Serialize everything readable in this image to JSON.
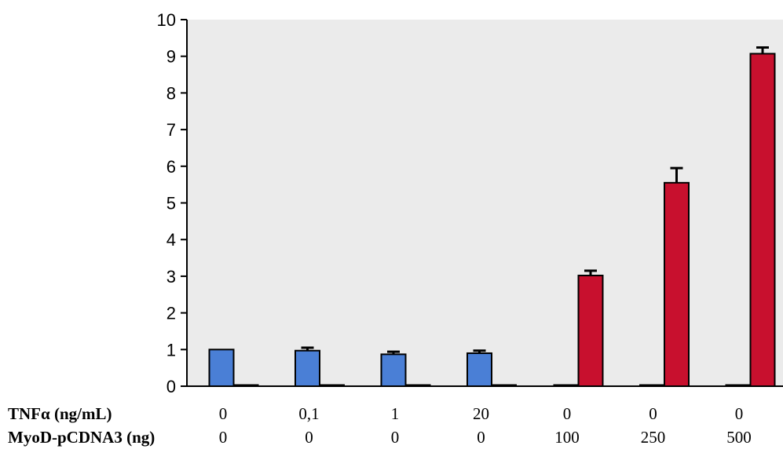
{
  "chart_data": {
    "type": "bar",
    "title": "",
    "xlabel": "",
    "ylabel": "",
    "ylim": [
      0,
      10
    ],
    "yticks": [
      0,
      1,
      2,
      3,
      4,
      5,
      6,
      7,
      8,
      9,
      10
    ],
    "grid": false,
    "legend": "none",
    "row_labels": [
      "TNFα (ng/mL)",
      "MyoD-pCDNA3 (ng)"
    ],
    "categories": [
      {
        "tnf": "0",
        "myod": "0"
      },
      {
        "tnf": "0,1",
        "myod": "0"
      },
      {
        "tnf": "1",
        "myod": "0"
      },
      {
        "tnf": "20",
        "myod": "0"
      },
      {
        "tnf": "0",
        "myod": "100"
      },
      {
        "tnf": "0",
        "myod": "250"
      },
      {
        "tnf": "0",
        "myod": "500"
      }
    ],
    "series": [
      {
        "color": "#4a7fd6",
        "values": [
          1.0,
          0.97,
          0.87,
          0.9,
          0,
          0,
          0
        ],
        "errors": [
          0,
          0.08,
          0.07,
          0.07,
          0,
          0,
          0
        ]
      },
      {
        "color": "#c8102e",
        "values": [
          0,
          0,
          0,
          0,
          3.02,
          5.55,
          9.07
        ],
        "errors": [
          0,
          0,
          0,
          0,
          0.13,
          0.4,
          0.17
        ]
      }
    ]
  }
}
